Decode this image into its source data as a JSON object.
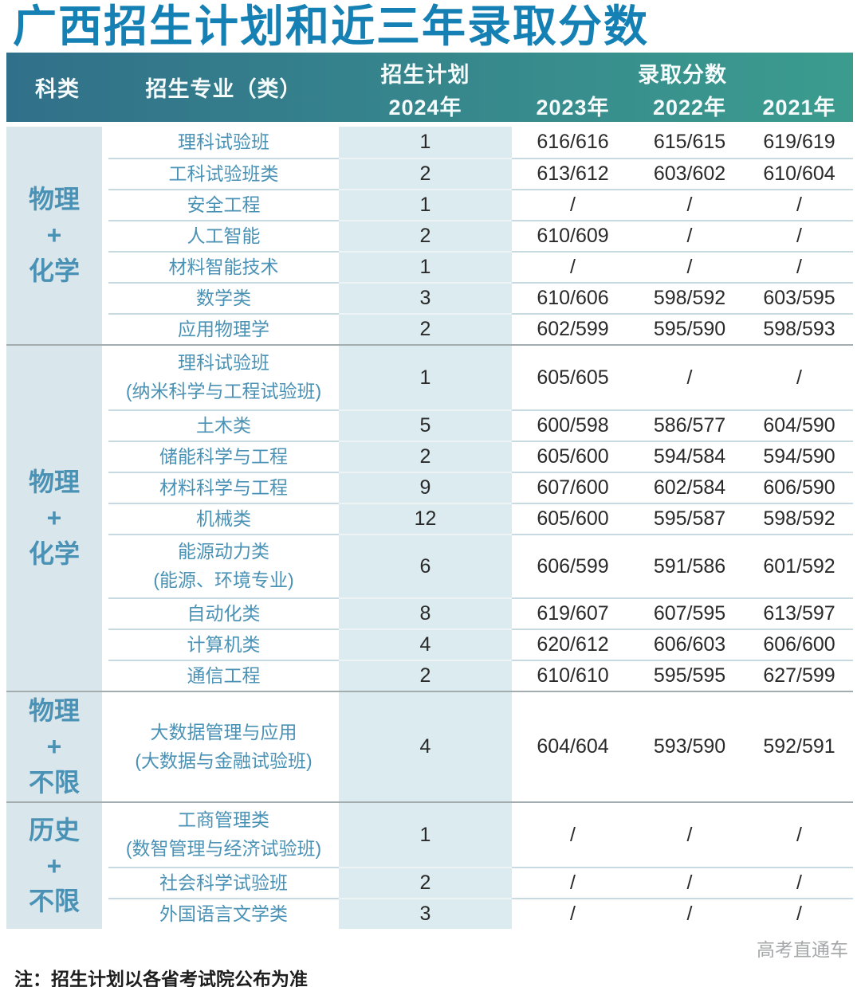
{
  "title": "广西招生计划和近三年录取分数",
  "header": {
    "subject": "科类",
    "major": "招生专业（类）",
    "plan_label": "招生计划",
    "plan_year": "2024年",
    "score_label": "录取分数",
    "score_years": [
      "2023年",
      "2022年",
      "2021年"
    ]
  },
  "chart_data": {
    "type": "table",
    "title": "广西招生计划和近三年录取分数",
    "columns": [
      "科类",
      "招生专业（类）",
      "招生计划 2024年",
      "录取分数 2023年",
      "录取分数 2022年",
      "录取分数 2021年"
    ],
    "groups": [
      {
        "subject_lines": [
          "物理",
          "+",
          "化学"
        ],
        "rows": [
          {
            "major_lines": [
              "理科试验班"
            ],
            "plan": "1",
            "scores": [
              "616/616",
              "615/615",
              "619/619"
            ]
          },
          {
            "major_lines": [
              "工科试验班类"
            ],
            "plan": "2",
            "scores": [
              "613/612",
              "603/602",
              "610/604"
            ]
          },
          {
            "major_lines": [
              "安全工程"
            ],
            "plan": "1",
            "scores": [
              "/",
              "/",
              "/"
            ]
          },
          {
            "major_lines": [
              "人工智能"
            ],
            "plan": "2",
            "scores": [
              "610/609",
              "/",
              "/"
            ]
          },
          {
            "major_lines": [
              "材料智能技术"
            ],
            "plan": "1",
            "scores": [
              "/",
              "/",
              "/"
            ]
          },
          {
            "major_lines": [
              "数学类"
            ],
            "plan": "3",
            "scores": [
              "610/606",
              "598/592",
              "603/595"
            ]
          },
          {
            "major_lines": [
              "应用物理学"
            ],
            "plan": "2",
            "scores": [
              "602/599",
              "595/590",
              "598/593"
            ]
          }
        ]
      },
      {
        "subject_lines": [
          "物理",
          "+",
          "化学"
        ],
        "rows": [
          {
            "major_lines": [
              "理科试验班",
              "(纳米科学与工程试验班)"
            ],
            "plan": "1",
            "scores": [
              "605/605",
              "/",
              "/"
            ]
          },
          {
            "major_lines": [
              "土木类"
            ],
            "plan": "5",
            "scores": [
              "600/598",
              "586/577",
              "604/590"
            ]
          },
          {
            "major_lines": [
              "储能科学与工程"
            ],
            "plan": "2",
            "scores": [
              "605/600",
              "594/584",
              "594/590"
            ]
          },
          {
            "major_lines": [
              "材料科学与工程"
            ],
            "plan": "9",
            "scores": [
              "607/600",
              "602/584",
              "606/590"
            ]
          },
          {
            "major_lines": [
              "机械类"
            ],
            "plan": "12",
            "scores": [
              "605/600",
              "595/587",
              "598/592"
            ]
          },
          {
            "major_lines": [
              "能源动力类",
              "(能源、环境专业)"
            ],
            "plan": "6",
            "scores": [
              "606/599",
              "591/586",
              "601/592"
            ]
          },
          {
            "major_lines": [
              "自动化类"
            ],
            "plan": "8",
            "scores": [
              "619/607",
              "607/595",
              "613/597"
            ]
          },
          {
            "major_lines": [
              "计算机类"
            ],
            "plan": "4",
            "scores": [
              "620/612",
              "606/603",
              "606/600"
            ]
          },
          {
            "major_lines": [
              "通信工程"
            ],
            "plan": "2",
            "scores": [
              "610/610",
              "595/595",
              "627/599"
            ]
          }
        ]
      },
      {
        "subject_lines": [
          "物理",
          "+",
          "不限"
        ],
        "rows": [
          {
            "major_lines": [
              "大数据管理与应用",
              "(大数据与金融试验班)"
            ],
            "plan": "4",
            "scores": [
              "604/604",
              "593/590",
              "592/591"
            ]
          }
        ]
      },
      {
        "subject_lines": [
          "历史",
          "+",
          "不限"
        ],
        "rows": [
          {
            "major_lines": [
              "工商管理类",
              "(数智管理与经济试验班)"
            ],
            "plan": "1",
            "scores": [
              "/",
              "/",
              "/"
            ]
          },
          {
            "major_lines": [
              "社会科学试验班"
            ],
            "plan": "2",
            "scores": [
              "/",
              "/",
              "/"
            ]
          },
          {
            "major_lines": [
              "外国语言文学类"
            ],
            "plan": "3",
            "scores": [
              "/",
              "/",
              "/"
            ]
          }
        ]
      }
    ]
  },
  "note": "注：招生计划以各省考试院公布为准",
  "watermark": "高考直通车",
  "colors": {
    "title_color": "#1580b4",
    "header_gradient_left": "#31708a",
    "header_gradient_right": "#3b9c8e",
    "subject_col_bg": "#d9e6ec",
    "plan_col_bg": "#dcebf0",
    "accent_text": "#4a92b5",
    "score_text": "#2a2a2a",
    "group_divider": "#a3acae",
    "row_divider": "#c8dae1",
    "watermark_color": "#a5a8a9"
  }
}
